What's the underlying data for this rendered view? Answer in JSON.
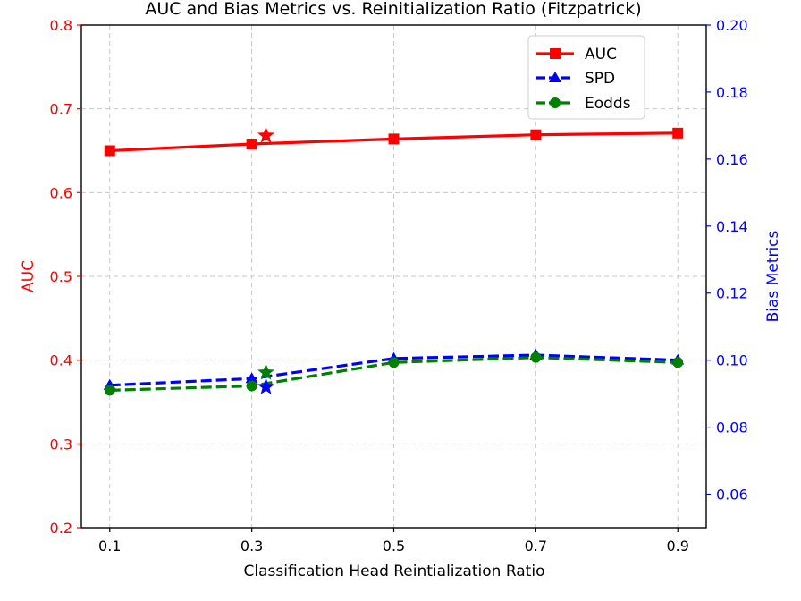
{
  "chart_data": {
    "type": "line",
    "title": "AUC and Bias Metrics vs. Reinitialization Ratio (Fitzpatrick)",
    "xlabel": "Classification Head Reintialization Ratio",
    "ylabel_left": "AUC",
    "ylabel_right": "Bias Metrics",
    "x_ticks": [
      0.1,
      0.3,
      0.5,
      0.7,
      0.9
    ],
    "x_tick_labels": [
      "0.1",
      "0.3",
      "0.5",
      "0.7",
      "0.9"
    ],
    "xlim": [
      0.06,
      0.94
    ],
    "ylim_left": [
      0.2,
      0.8
    ],
    "ylim_right": [
      0.05,
      0.2
    ],
    "y_ticks_left": [
      "0.2",
      "0.3",
      "0.4",
      "0.5",
      "0.6",
      "0.7",
      "0.8"
    ],
    "y_ticks_right": [
      "0.06",
      "0.08",
      "0.10",
      "0.12",
      "0.14",
      "0.16",
      "0.18",
      "0.20"
    ],
    "grid": true,
    "legend_position": "top-right",
    "colors": {
      "auc": "#ff0000",
      "spd": "#0000ff",
      "eodds": "#008000",
      "grid": "#c8c8c8",
      "axis": "#000000"
    },
    "series": [
      {
        "name": "AUC",
        "axis": "left",
        "marker": "square",
        "linestyle": "solid",
        "x": [
          0.1,
          0.3,
          0.5,
          0.7,
          0.9
        ],
        "values": [
          0.65,
          0.658,
          0.664,
          0.669,
          0.671
        ]
      },
      {
        "name": "SPD",
        "axis": "right",
        "marker": "triangle",
        "linestyle": "dashed",
        "x": [
          0.1,
          0.3,
          0.5,
          0.7,
          0.9
        ],
        "values": [
          0.0925,
          0.0945,
          0.1005,
          0.1015,
          0.1
        ]
      },
      {
        "name": "Eodds",
        "axis": "right",
        "marker": "circle",
        "linestyle": "dashed",
        "x": [
          0.1,
          0.3,
          0.5,
          0.7,
          0.9
        ],
        "values": [
          0.091,
          0.0923,
          0.0993,
          0.1008,
          0.0993
        ]
      }
    ],
    "highlights": [
      {
        "name": "AUC",
        "axis": "left",
        "marker": "star",
        "x": 0.32,
        "y": 0.668
      },
      {
        "name": "SPD",
        "axis": "right",
        "marker": "star",
        "x": 0.32,
        "y": 0.092
      },
      {
        "name": "Eodds",
        "axis": "right",
        "marker": "star",
        "x": 0.32,
        "y": 0.0963
      }
    ]
  }
}
